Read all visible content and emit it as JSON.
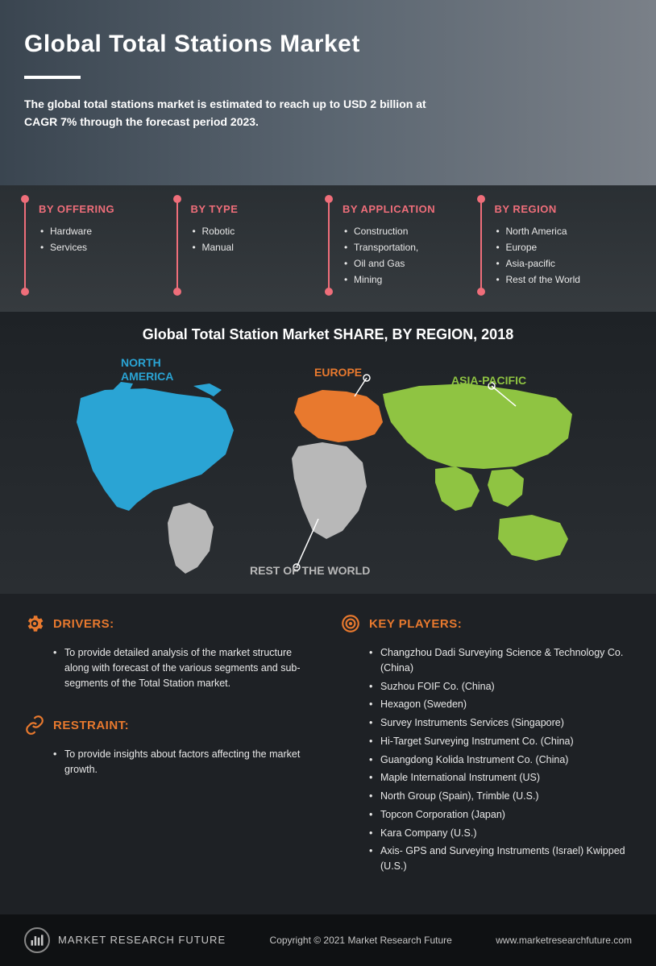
{
  "hero": {
    "title": "Global Total Stations Market",
    "subtitle": "The global total stations market is estimated to reach up to USD 2 billion at CAGR 7% through the forecast period 2023."
  },
  "segments": [
    {
      "title": "BY OFFERING",
      "items": [
        "Hardware",
        "Services"
      ]
    },
    {
      "title": "BY TYPE",
      "items": [
        "Robotic",
        "Manual"
      ]
    },
    {
      "title": "BY APPLICATION",
      "items": [
        "Construction",
        "Transportation,",
        "Oil and Gas",
        "Mining"
      ]
    },
    {
      "title": "BY REGION",
      "items": [
        "North America",
        "Europe",
        "Asia-pacific",
        "Rest of the World"
      ]
    }
  ],
  "map": {
    "title": "Global Total Station Market SHARE, BY REGION, 2018",
    "regions": {
      "na": {
        "label": "NORTH AMERICA",
        "color": "#2aa4d4"
      },
      "eu": {
        "label": "EUROPE",
        "color": "#e8792e"
      },
      "ap": {
        "label": "ASIA-PACIFIC",
        "color": "#8fc442"
      },
      "row": {
        "label": "REST OF THE WORLD",
        "color": "#b8b8b8"
      }
    }
  },
  "bottom": {
    "drivers": {
      "title": "DRIVERS:",
      "items": [
        "To provide detailed analysis of the market structure along with forecast of the various segments and sub-segments of the Total Station market."
      ]
    },
    "restraint": {
      "title": "RESTRAINT:",
      "items": [
        "To provide insights about factors affecting the market growth."
      ]
    },
    "keyplayers": {
      "title": "KEY PLAYERS:",
      "items": [
        "Changzhou Dadi Surveying Science & Technology Co. (China)",
        "Suzhou FOIF Co. (China)",
        "Hexagon (Sweden)",
        "Survey Instruments Services (Singapore)",
        "Hi-Target Surveying Instrument Co. (China)",
        "Guangdong Kolida Instrument Co. (China)",
        "Maple International Instrument (US)",
        "North Group (Spain), Trimble (U.S.)",
        "Topcon Corporation (Japan)",
        "Kara Company (U.S.)",
        "Axis- GPS and Surveying Instruments (Israel) Kwipped (U.S.)"
      ]
    }
  },
  "footer": {
    "brand": "MARKET RESEARCH FUTURE",
    "copyright": "Copyright © 2021 Market Research Future",
    "url": "www.marketresearchfuture.com"
  },
  "colors": {
    "accent_pink": "#ef6e7a",
    "accent_orange": "#e8792e",
    "na_blue": "#2aa4d4",
    "ap_green": "#8fc442",
    "row_grey": "#b8b8b8",
    "bg_dark": "#1e2125",
    "bg_footer": "#0f1113"
  }
}
